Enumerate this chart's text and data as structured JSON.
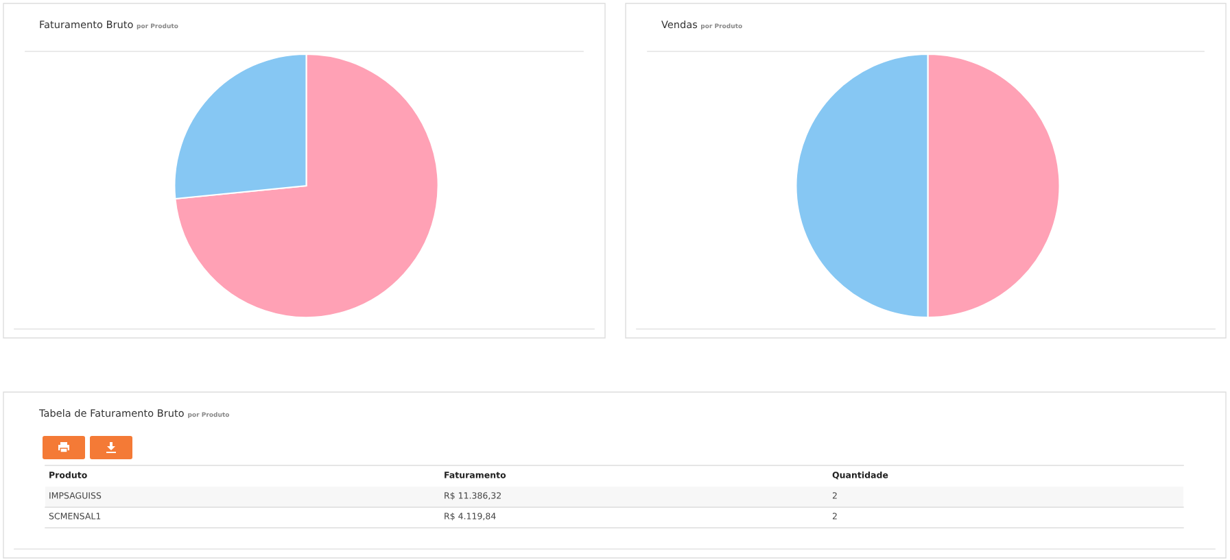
{
  "chart_data": [
    {
      "type": "pie",
      "title": "Faturamento Bruto",
      "subtitle": "por Produto",
      "categories": [
        null,
        null
      ],
      "values": [
        73.43,
        26.57
      ],
      "colors": [
        "#ffa1b5",
        "#86c7f3"
      ]
    },
    {
      "type": "pie",
      "title": "Vendas",
      "subtitle": "por Produto",
      "categories": [
        null,
        null
      ],
      "values": [
        50,
        50
      ],
      "colors": [
        "#ffa1b5",
        "#86c7f3"
      ]
    },
    {
      "type": "other",
      "title": "Tabela de Faturamento Bruto",
      "subtitle": "por Produto",
      "annotations": [
        "Produto",
        "Faturamento",
        "Quantidade",
        "IMPSAGUISS",
        "R$ 11.386,32",
        "2",
        "SCMENSAL1",
        "R$ 4.119,84",
        "2"
      ]
    }
  ]
}
